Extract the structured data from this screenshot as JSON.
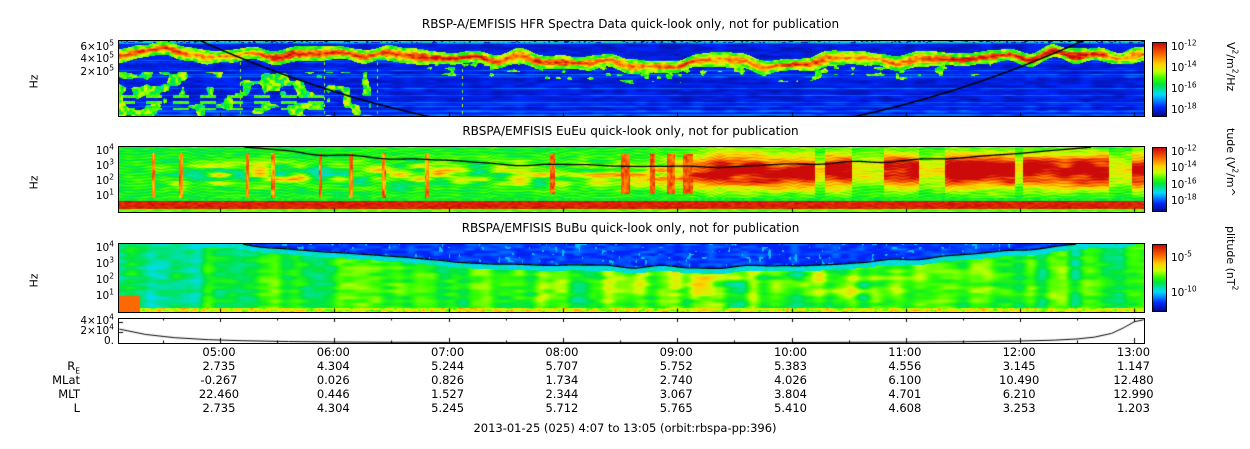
{
  "figure": {
    "footer": "2013-01-25 (025) 4:07 to 13:05 (orbit:rbspa-pp:396)"
  },
  "time_axis": {
    "start": "4:07",
    "end": "13:05",
    "ticks": [
      "05:00",
      "06:00",
      "07:00",
      "08:00",
      "09:00",
      "10:00",
      "11:00",
      "12:00",
      "13:00"
    ]
  },
  "ephemeris": {
    "rows": [
      {
        "label": "R_E",
        "values": [
          "2.735",
          "4.304",
          "5.244",
          "5.707",
          "5.752",
          "5.383",
          "4.556",
          "3.145",
          "1.147"
        ]
      },
      {
        "label": "MLat",
        "values": [
          "-0.267",
          "0.026",
          "0.826",
          "1.734",
          "2.740",
          "4.026",
          "6.100",
          "10.490",
          "12.480"
        ]
      },
      {
        "label": "MLT",
        "values": [
          "22.460",
          "0.446",
          "1.527",
          "2.344",
          "3.067",
          "3.804",
          "4.701",
          "6.210",
          "12.990"
        ]
      },
      {
        "label": "L",
        "values": [
          "2.735",
          "4.304",
          "5.245",
          "5.712",
          "5.765",
          "5.410",
          "4.608",
          "3.253",
          "1.203"
        ]
      }
    ]
  },
  "chart_data": [
    {
      "type": "heatmap",
      "title": "RBSP-A/EMFISIS  HFR Spectra Data quick-look only, not for publication",
      "ylabel": "Hz",
      "yscale": "log",
      "yticks": [
        "6×10^5",
        "4×10^5",
        "2×10^5"
      ],
      "x_range": [
        "4:07",
        "13:05"
      ],
      "colorbar": {
        "label": "V^2/m^2/Hz",
        "ticks": [
          "10^-12",
          "10^-14",
          "10^-16",
          "10^-18"
        ],
        "colormap": "jet"
      },
      "overlay": "black fce trace descending from upper-left to below panel and rising again near right edge"
    },
    {
      "type": "heatmap",
      "title": "RBSPA/EMFISIS  EuEu quick-look only, not for publication",
      "ylabel": "Hz",
      "yscale": "log",
      "yticks": [
        "10^4",
        "10^3",
        "10^2",
        "10^1"
      ],
      "x_range": [
        "4:07",
        "13:05"
      ],
      "colorbar": {
        "label": "tude (V^2/m^",
        "ticks": [
          "10^-12",
          "10^-14",
          "10^-16",
          "10^-18"
        ],
        "colormap": "jet"
      },
      "overlay": "black fce trace arc across upper part of panel"
    },
    {
      "type": "heatmap",
      "title": "RBSPA/EMFISIS  BuBu quick-look only, not for publication",
      "ylabel": "Hz",
      "yscale": "log",
      "yticks": [
        "10^4",
        "10^3",
        "10^2",
        "10^1"
      ],
      "x_range": [
        "4:07",
        "13:05"
      ],
      "colorbar": {
        "label": "plitude (nT^2",
        "ticks": [
          "10^-5",
          "10^-10"
        ],
        "colormap": "jet"
      },
      "overlay": "black fce trace arc; region above trace is low-amplitude (blue)"
    },
    {
      "type": "line",
      "yticks": [
        "4×10^4",
        "2×10^4",
        "0."
      ],
      "ylim": [
        0,
        45000
      ],
      "x_range": [
        "4:07",
        "13:05"
      ],
      "series": [
        {
          "name": "line-trace",
          "x": [
            4.12,
            4.35,
            4.6,
            4.9,
            5.2,
            5.6,
            6.0,
            6.5,
            7.0,
            7.5,
            8.0,
            8.5,
            9.0,
            9.5,
            10.0,
            10.5,
            11.0,
            11.5,
            12.0,
            12.3,
            12.5,
            12.65,
            12.8,
            12.9,
            13.0,
            13.08
          ],
          "y": [
            26000,
            16000,
            10000,
            6200,
            4200,
            2700,
            1850,
            1300,
            1000,
            830,
            740,
            700,
            720,
            810,
            960,
            1250,
            1650,
            2400,
            3700,
            5300,
            7600,
            11000,
            18000,
            28000,
            40000,
            45000
          ]
        }
      ]
    }
  ]
}
